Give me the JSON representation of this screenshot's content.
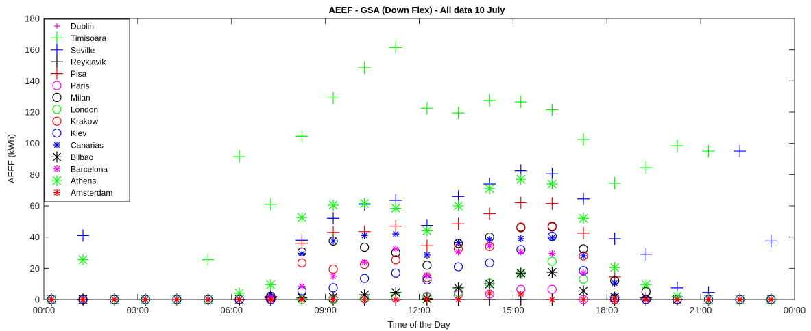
{
  "chart_data": {
    "type": "scatter",
    "title": "AEEF - GSA (Down Flex) - All data 10 July",
    "xlabel": "Time of the Day",
    "ylabel": "AEEF (kWh)",
    "xlim": [
      0,
      24
    ],
    "ylim": [
      0,
      180
    ],
    "x_ticks": [
      0,
      3,
      6,
      9,
      12,
      15,
      18,
      21,
      24
    ],
    "x_tick_labels": [
      "00:00",
      "03:00",
      "06:00",
      "09:00",
      "12:00",
      "15:00",
      "18:00",
      "21:00",
      "00:00"
    ],
    "y_ticks": [
      0,
      20,
      40,
      60,
      80,
      100,
      120,
      140,
      160,
      180
    ],
    "grid": false,
    "legend_position": "top-left",
    "x": [
      0.25,
      1.25,
      2.25,
      3.25,
      4.25,
      5.25,
      6.25,
      7.25,
      8.25,
      9.25,
      10.25,
      11.25,
      12.25,
      13.25,
      14.25,
      15.25,
      16.25,
      17.25,
      18.25,
      19.25,
      20.25,
      21.25,
      22.25,
      23.25
    ],
    "series": [
      {
        "name": "Dublin",
        "color": "#ff00ff",
        "marker": "plus-small",
        "values": [
          0,
          0,
          0,
          0,
          0,
          0,
          0,
          0,
          0,
          0,
          0,
          0,
          0,
          0,
          0,
          0,
          0,
          0,
          0,
          0,
          0,
          0,
          0,
          0
        ]
      },
      {
        "name": "Timisoara",
        "color": "#00ff00",
        "marker": "plus",
        "values": [
          0,
          0,
          0,
          0,
          0,
          25.5,
          91.5,
          61,
          104.5,
          129,
          148.5,
          161.5,
          122.5,
          119.5,
          127.5,
          126.5,
          121.5,
          102.5,
          74.5,
          84.5,
          98.5,
          95,
          0,
          0
        ]
      },
      {
        "name": "Seville",
        "color": "#0000ff",
        "marker": "plus",
        "values": [
          0,
          41,
          0,
          0,
          0,
          0,
          0,
          2,
          38,
          52,
          61,
          63.5,
          47.5,
          66,
          74,
          82.5,
          80.5,
          64.5,
          39,
          29,
          7.5,
          4.5,
          95,
          37.5
        ]
      },
      {
        "name": "Reykjavik",
        "color": "#000000",
        "marker": "plus",
        "values": [
          0,
          0,
          0,
          0,
          0,
          0,
          0,
          0,
          0,
          0,
          0,
          0,
          0,
          0,
          0,
          0,
          0,
          0,
          0,
          0,
          0,
          0,
          0,
          0
        ]
      },
      {
        "name": "Pisa",
        "color": "#ff0000",
        "marker": "plus",
        "values": [
          0,
          0,
          0,
          0,
          0,
          0,
          0,
          1,
          36,
          43,
          43.5,
          47,
          34.5,
          48.5,
          55,
          62,
          61.5,
          42.5,
          14.5,
          1,
          0,
          0,
          0,
          0
        ]
      },
      {
        "name": "Paris",
        "color": "#ff00ff",
        "marker": "circle",
        "values": [
          0,
          0,
          0,
          0,
          0,
          0,
          0,
          0,
          0,
          0.5,
          0.5,
          1,
          2,
          3,
          3.5,
          6.5,
          6.5,
          0,
          0,
          0,
          0,
          0,
          0,
          0
        ]
      },
      {
        "name": "Milan",
        "color": "#000000",
        "marker": "circle",
        "values": [
          0,
          0,
          0,
          0,
          0,
          0,
          0,
          2,
          30.5,
          37.5,
          33.5,
          30,
          22,
          36,
          40,
          46,
          46.5,
          32.5,
          12,
          5,
          0,
          0,
          0,
          0
        ]
      },
      {
        "name": "London",
        "color": "#00ff00",
        "marker": "circle",
        "values": [
          0,
          0,
          0,
          0,
          0,
          0,
          0,
          0,
          0,
          0,
          1,
          2,
          1.5,
          4.5,
          10.5,
          17,
          24.5,
          13,
          0,
          0,
          0,
          0,
          0,
          0
        ]
      },
      {
        "name": "Krakow",
        "color": "#ff0000",
        "marker": "circle",
        "values": [
          0,
          0,
          0,
          0,
          0,
          0,
          0,
          1,
          23.5,
          19.5,
          22.5,
          25.5,
          14,
          32.5,
          34,
          46.5,
          47,
          28,
          0,
          0,
          0,
          0,
          0,
          0
        ]
      },
      {
        "name": "Kiev",
        "color": "#0000ff",
        "marker": "circle",
        "values": [
          0,
          0,
          0,
          0,
          0,
          0,
          0,
          0,
          5.5,
          7.5,
          13.5,
          17,
          12.5,
          21,
          23.5,
          32,
          40.5,
          18.5,
          1,
          0,
          0,
          0,
          0,
          0
        ]
      },
      {
        "name": "Canarias",
        "color": "#0000ff",
        "marker": "asterisk-small",
        "values": [
          0,
          0,
          0,
          0,
          0,
          0,
          0,
          3,
          29.5,
          37.5,
          41,
          42,
          28.5,
          36.5,
          38.5,
          39,
          39.5,
          28,
          10.5,
          1,
          0,
          0,
          0,
          0
        ]
      },
      {
        "name": "Bilbao",
        "color": "#000000",
        "marker": "asterisk",
        "values": [
          0,
          0,
          0,
          0,
          0,
          0,
          0,
          1,
          1,
          1.5,
          3,
          4.5,
          0.5,
          7.5,
          10,
          17,
          17.5,
          5.5,
          1.5,
          1,
          0,
          0,
          0,
          0
        ]
      },
      {
        "name": "Barcelona",
        "color": "#ff00ff",
        "marker": "asterisk-small",
        "values": [
          0,
          0,
          0,
          0,
          0,
          0,
          0,
          1,
          8.5,
          15,
          24,
          32.5,
          15.5,
          30.5,
          34.5,
          30.5,
          29.5,
          17,
          0,
          0,
          0,
          0,
          0,
          0
        ]
      },
      {
        "name": "Athens",
        "color": "#00ff00",
        "marker": "asterisk",
        "values": [
          0,
          25.5,
          0,
          0,
          0,
          0,
          4,
          9.5,
          52.5,
          60.5,
          61.5,
          58.5,
          44,
          60,
          71,
          77,
          74,
          52,
          20.5,
          9.5,
          2,
          0,
          0,
          0
        ]
      },
      {
        "name": "Amsterdam",
        "color": "#ff0000",
        "marker": "asterisk-small",
        "values": [
          0,
          0,
          0,
          0,
          0,
          0,
          0,
          0,
          0,
          0,
          0,
          0,
          0,
          0,
          4,
          3.5,
          0,
          0,
          0,
          0,
          0,
          0,
          0,
          0
        ]
      }
    ]
  }
}
